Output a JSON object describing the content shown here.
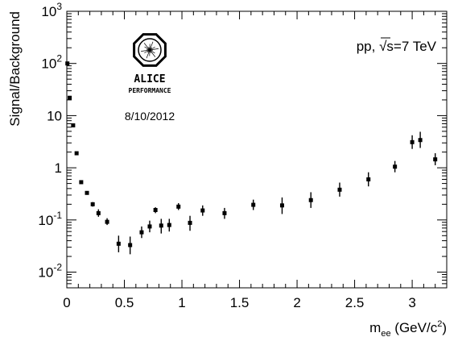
{
  "chart_data": {
    "type": "scatter",
    "title": "",
    "xlabel": {
      "main": "m",
      "sub": "ee",
      "unit_prefix": " (GeV/c",
      "unit_sup": "2",
      "unit_suffix": ")"
    },
    "ylabel": "Signal/Background",
    "xlim": [
      0,
      3.3
    ],
    "ylim": [
      0.005,
      1000
    ],
    "yscale": "log",
    "grid": false,
    "xticks": [
      0,
      0.5,
      1,
      1.5,
      2,
      2.5,
      3
    ],
    "xtick_labels": [
      "0",
      "0.5",
      "1",
      "1.5",
      "2",
      "2.5",
      "3"
    ],
    "yticks": [
      0.01,
      0.1,
      1,
      10,
      100,
      1000
    ],
    "ytick_labels": [
      {
        "base": "10",
        "exp": "-2"
      },
      {
        "base": "10",
        "exp": "-1"
      },
      {
        "base": "1",
        "exp": ""
      },
      {
        "base": "10",
        "exp": ""
      },
      {
        "base": "10",
        "exp": "2"
      },
      {
        "base": "10",
        "exp": "3"
      }
    ],
    "annotations": {
      "system_prefix": "pp, ",
      "system_root": "√s",
      "system_suffix": "=7 TeV",
      "date": "8/10/2012",
      "logo_name": "ALICE",
      "logo_sub": "PERFORMANCE"
    },
    "series": [
      {
        "marker": "square",
        "color": "#000000",
        "points": [
          {
            "x": 0.005,
            "y": 100,
            "ylo": 100,
            "yhi": 100
          },
          {
            "x": 0.025,
            "y": 22,
            "ylo": 22,
            "yhi": 22
          },
          {
            "x": 0.055,
            "y": 6.5,
            "ylo": 6.5,
            "yhi": 6.5
          },
          {
            "x": 0.085,
            "y": 1.9,
            "ylo": 1.9,
            "yhi": 1.9
          },
          {
            "x": 0.125,
            "y": 0.53,
            "ylo": 0.53,
            "yhi": 0.53
          },
          {
            "x": 0.175,
            "y": 0.33,
            "ylo": 0.33,
            "yhi": 0.33
          },
          {
            "x": 0.225,
            "y": 0.2,
            "ylo": 0.18,
            "yhi": 0.22
          },
          {
            "x": 0.275,
            "y": 0.135,
            "ylo": 0.115,
            "yhi": 0.16
          },
          {
            "x": 0.35,
            "y": 0.092,
            "ylo": 0.08,
            "yhi": 0.108
          },
          {
            "x": 0.45,
            "y": 0.035,
            "ylo": 0.024,
            "yhi": 0.05
          },
          {
            "x": 0.55,
            "y": 0.033,
            "ylo": 0.022,
            "yhi": 0.048
          },
          {
            "x": 0.65,
            "y": 0.058,
            "ylo": 0.045,
            "yhi": 0.075
          },
          {
            "x": 0.72,
            "y": 0.075,
            "ylo": 0.058,
            "yhi": 0.097
          },
          {
            "x": 0.77,
            "y": 0.155,
            "ylo": 0.135,
            "yhi": 0.175
          },
          {
            "x": 0.82,
            "y": 0.078,
            "ylo": 0.055,
            "yhi": 0.105
          },
          {
            "x": 0.89,
            "y": 0.08,
            "ylo": 0.06,
            "yhi": 0.105
          },
          {
            "x": 0.97,
            "y": 0.18,
            "ylo": 0.155,
            "yhi": 0.21
          },
          {
            "x": 1.07,
            "y": 0.088,
            "ylo": 0.062,
            "yhi": 0.12
          },
          {
            "x": 1.18,
            "y": 0.152,
            "ylo": 0.12,
            "yhi": 0.19
          },
          {
            "x": 1.37,
            "y": 0.135,
            "ylo": 0.105,
            "yhi": 0.17
          },
          {
            "x": 1.62,
            "y": 0.195,
            "ylo": 0.155,
            "yhi": 0.245
          },
          {
            "x": 1.87,
            "y": 0.19,
            "ylo": 0.13,
            "yhi": 0.27
          },
          {
            "x": 2.12,
            "y": 0.24,
            "ylo": 0.17,
            "yhi": 0.34
          },
          {
            "x": 2.37,
            "y": 0.38,
            "ylo": 0.28,
            "yhi": 0.52
          },
          {
            "x": 2.62,
            "y": 0.6,
            "ylo": 0.44,
            "yhi": 0.82
          },
          {
            "x": 2.85,
            "y": 1.05,
            "ylo": 0.82,
            "yhi": 1.35
          },
          {
            "x": 3.0,
            "y": 3.1,
            "ylo": 2.3,
            "yhi": 4.2
          },
          {
            "x": 3.07,
            "y": 3.4,
            "ylo": 2.4,
            "yhi": 4.9
          },
          {
            "x": 3.2,
            "y": 1.45,
            "ylo": 1.12,
            "yhi": 1.9
          }
        ]
      }
    ]
  }
}
